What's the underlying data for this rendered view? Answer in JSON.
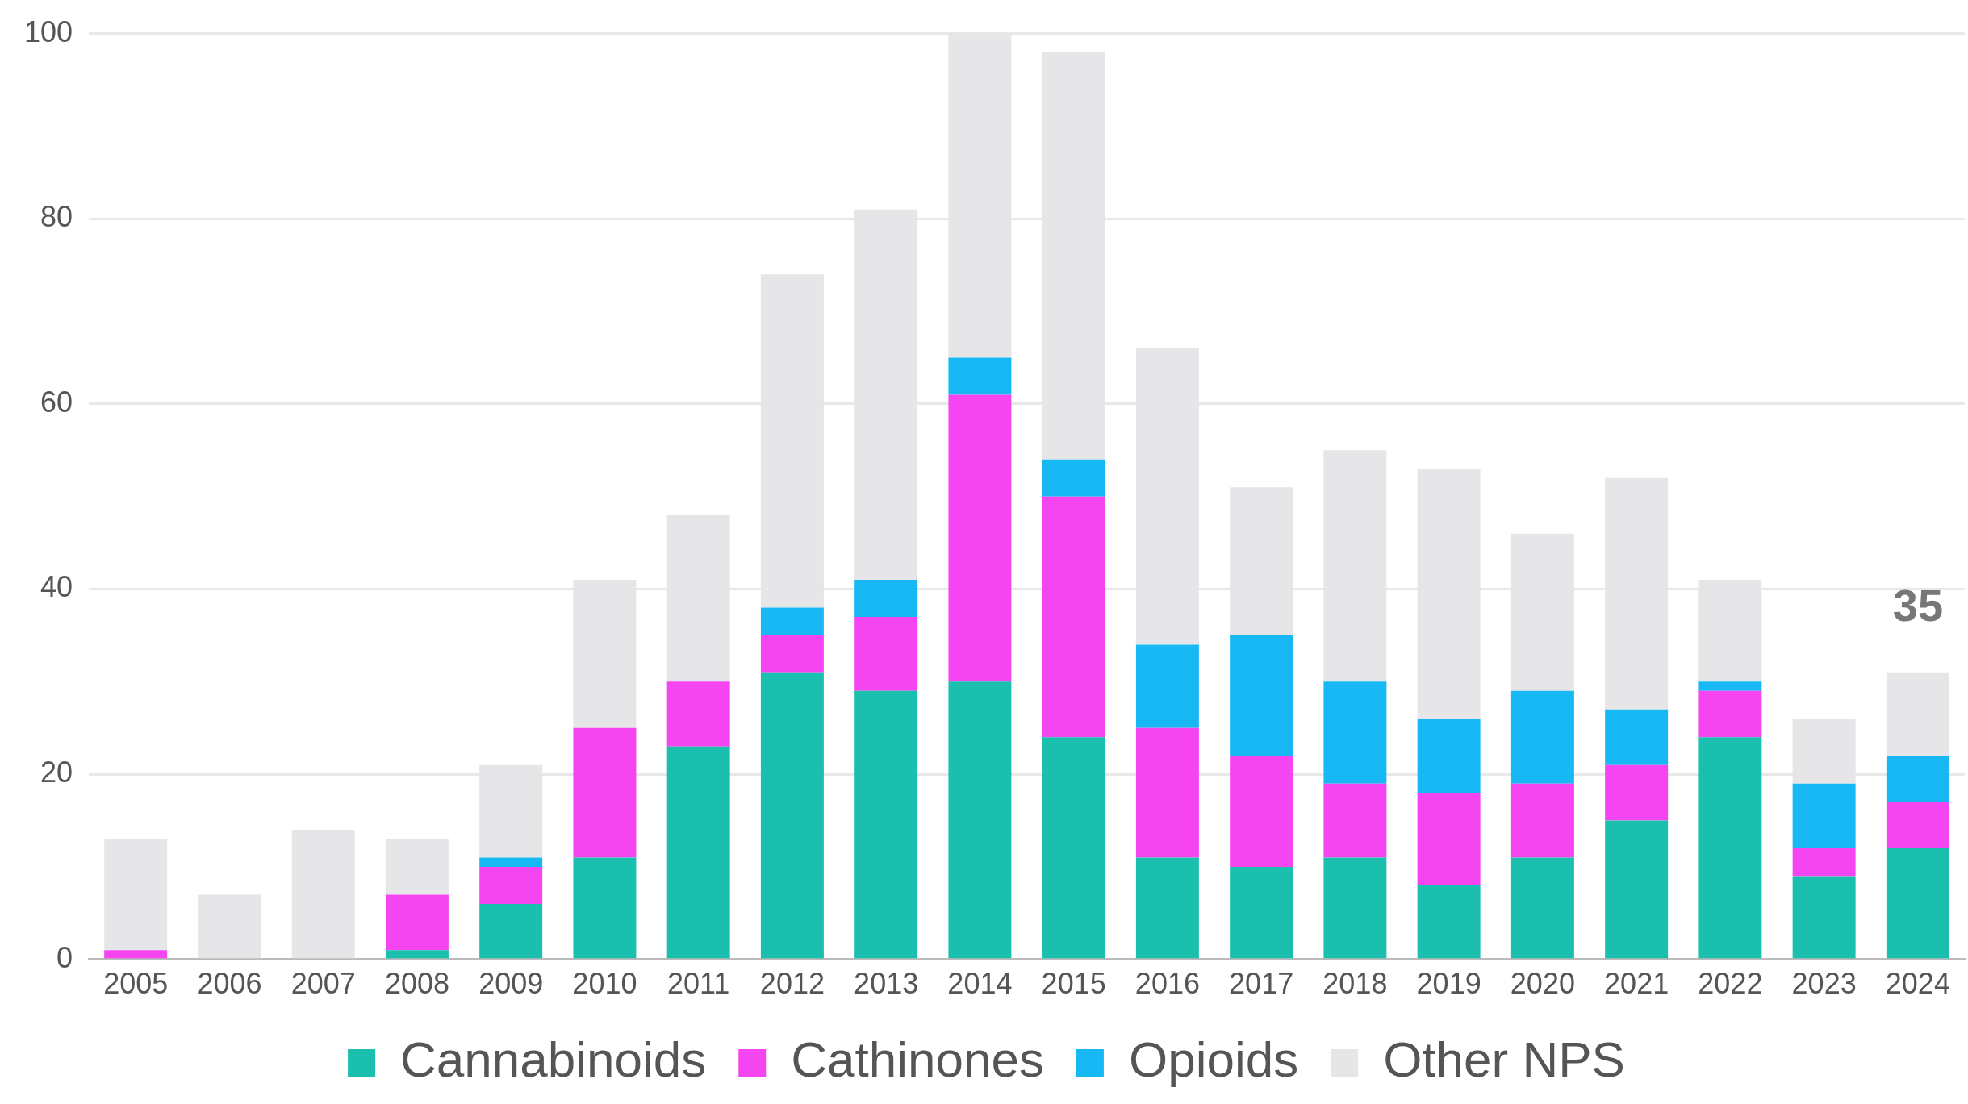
{
  "chart_data": {
    "type": "bar",
    "stacked": true,
    "categories": [
      "2005",
      "2006",
      "2007",
      "2008",
      "2009",
      "2010",
      "2011",
      "2012",
      "2013",
      "2014",
      "2015",
      "2016",
      "2017",
      "2018",
      "2019",
      "2020",
      "2021",
      "2022",
      "2023",
      "2024"
    ],
    "series": [
      {
        "name": "Cannabinoids",
        "color": "#1abfae",
        "values": [
          0,
          0,
          0,
          1,
          6,
          11,
          23,
          31,
          29,
          30,
          24,
          11,
          10,
          11,
          8,
          11,
          15,
          24,
          9,
          12
        ]
      },
      {
        "name": "Cathinones",
        "color": "#f545f0",
        "values": [
          1,
          0,
          0,
          6,
          4,
          14,
          7,
          4,
          8,
          31,
          26,
          14,
          12,
          8,
          10,
          8,
          6,
          5,
          3,
          5
        ]
      },
      {
        "name": "Opioids",
        "color": "#18b8f5",
        "values": [
          0,
          0,
          0,
          0,
          1,
          0,
          0,
          3,
          4,
          4,
          4,
          9,
          13,
          11,
          8,
          10,
          6,
          1,
          7,
          5
        ]
      },
      {
        "name": "Other NPS",
        "color": "#e6e6e8",
        "values": [
          12,
          7,
          14,
          6,
          10,
          16,
          18,
          36,
          40,
          35,
          44,
          32,
          16,
          25,
          27,
          17,
          25,
          11,
          7,
          9
        ]
      }
    ],
    "ylim": [
      0,
      100
    ],
    "yticks": [
      0,
      20,
      40,
      60,
      80,
      100
    ],
    "grid": "y",
    "legend": "bottom",
    "annotations": [
      "35"
    ]
  }
}
